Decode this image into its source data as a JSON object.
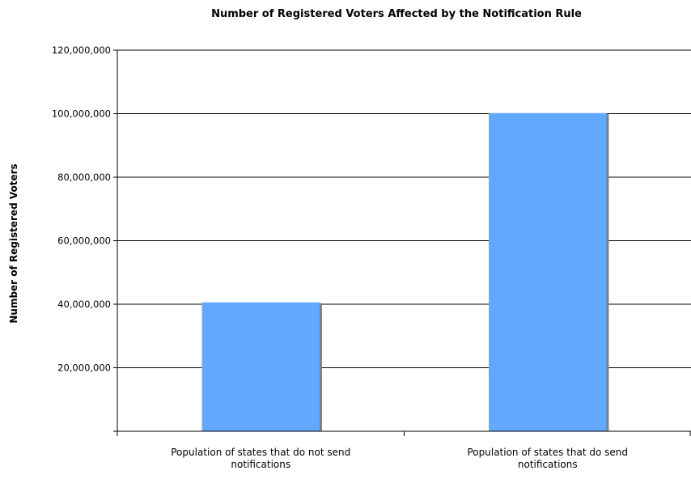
{
  "chart_data": {
    "type": "bar",
    "title": "Number of Registered Voters Affected by the Notification Rule",
    "xlabel": "",
    "ylabel": "Number of Registered Voters",
    "categories": [
      [
        "Population of states that do not send",
        "notifications"
      ],
      [
        "Population of states that do send",
        "notifications"
      ]
    ],
    "values": [
      40600000,
      100200000
    ],
    "ylim": [
      0,
      120000000
    ],
    "yticks": [
      0,
      20000000,
      40000000,
      60000000,
      80000000,
      100000000,
      120000000
    ],
    "ytick_labels": [
      "",
      "20,000,000",
      "40,000,000",
      "60,000,000",
      "80,000,000",
      "100,000,000",
      "120,000,000"
    ],
    "grid": true,
    "legend": "none",
    "bar_color": "#63a8ff",
    "bar_shadow_color": "#7f7f7f"
  }
}
